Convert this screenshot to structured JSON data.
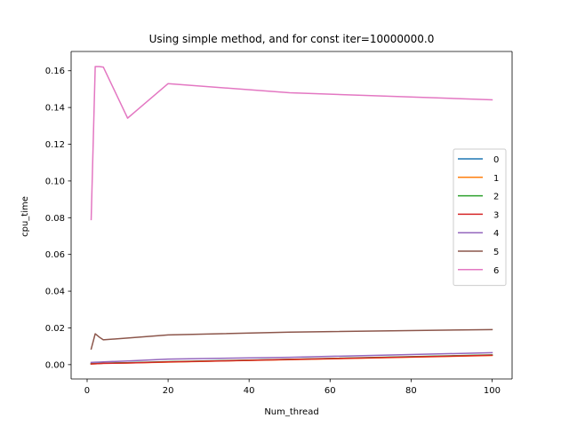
{
  "chart_data": {
    "type": "line",
    "title": "Using simple method, and for const iter=10000000.0",
    "xlabel": "Num_thread",
    "ylabel": "cpu_time",
    "xlim": [
      -3.95,
      104.95
    ],
    "ylim": [
      -0.0078,
      0.1705
    ],
    "x_ticks": [
      0,
      20,
      40,
      60,
      80,
      100
    ],
    "x_tick_labels": [
      "0",
      "20",
      "40",
      "60",
      "80",
      "100"
    ],
    "y_ticks": [
      0.0,
      0.02,
      0.04,
      0.06,
      0.08,
      0.1,
      0.12,
      0.14,
      0.16
    ],
    "y_tick_labels": [
      "0.00",
      "0.02",
      "0.04",
      "0.06",
      "0.08",
      "0.10",
      "0.12",
      "0.14",
      "0.16"
    ],
    "grid": false,
    "legend_position": "center-right",
    "x": [
      1,
      2,
      3,
      4,
      10,
      20,
      50,
      100
    ],
    "series": [
      {
        "name": "0",
        "color": "#1f77b4",
        "values": [
          0.0005,
          0.0006,
          0.0007,
          0.0008,
          0.001,
          0.0015,
          0.0028,
          0.0052
        ]
      },
      {
        "name": "1",
        "color": "#ff7f0e",
        "values": [
          0.0004,
          0.0005,
          0.0006,
          0.0007,
          0.0009,
          0.0014,
          0.0027,
          0.005
        ]
      },
      {
        "name": "2",
        "color": "#2ca02c",
        "values": [
          0.0005,
          0.0006,
          0.0007,
          0.0008,
          0.001,
          0.0016,
          0.0029,
          0.0053
        ]
      },
      {
        "name": "3",
        "color": "#d62728",
        "values": [
          0.0004,
          0.0005,
          0.0006,
          0.0007,
          0.0009,
          0.0015,
          0.0028,
          0.0051
        ]
      },
      {
        "name": "4",
        "color": "#9467bd",
        "values": [
          0.0012,
          0.0013,
          0.0014,
          0.0015,
          0.002,
          0.003,
          0.004,
          0.0065
        ]
      },
      {
        "name": "5",
        "color": "#8c564b",
        "values": [
          0.0085,
          0.0168,
          0.015,
          0.0135,
          0.0145,
          0.0162,
          0.0177,
          0.0191
        ]
      },
      {
        "name": "6",
        "color": "#e377c2",
        "values": [
          0.079,
          0.1623,
          0.1623,
          0.162,
          0.1342,
          0.153,
          0.148,
          0.1442
        ]
      }
    ]
  }
}
